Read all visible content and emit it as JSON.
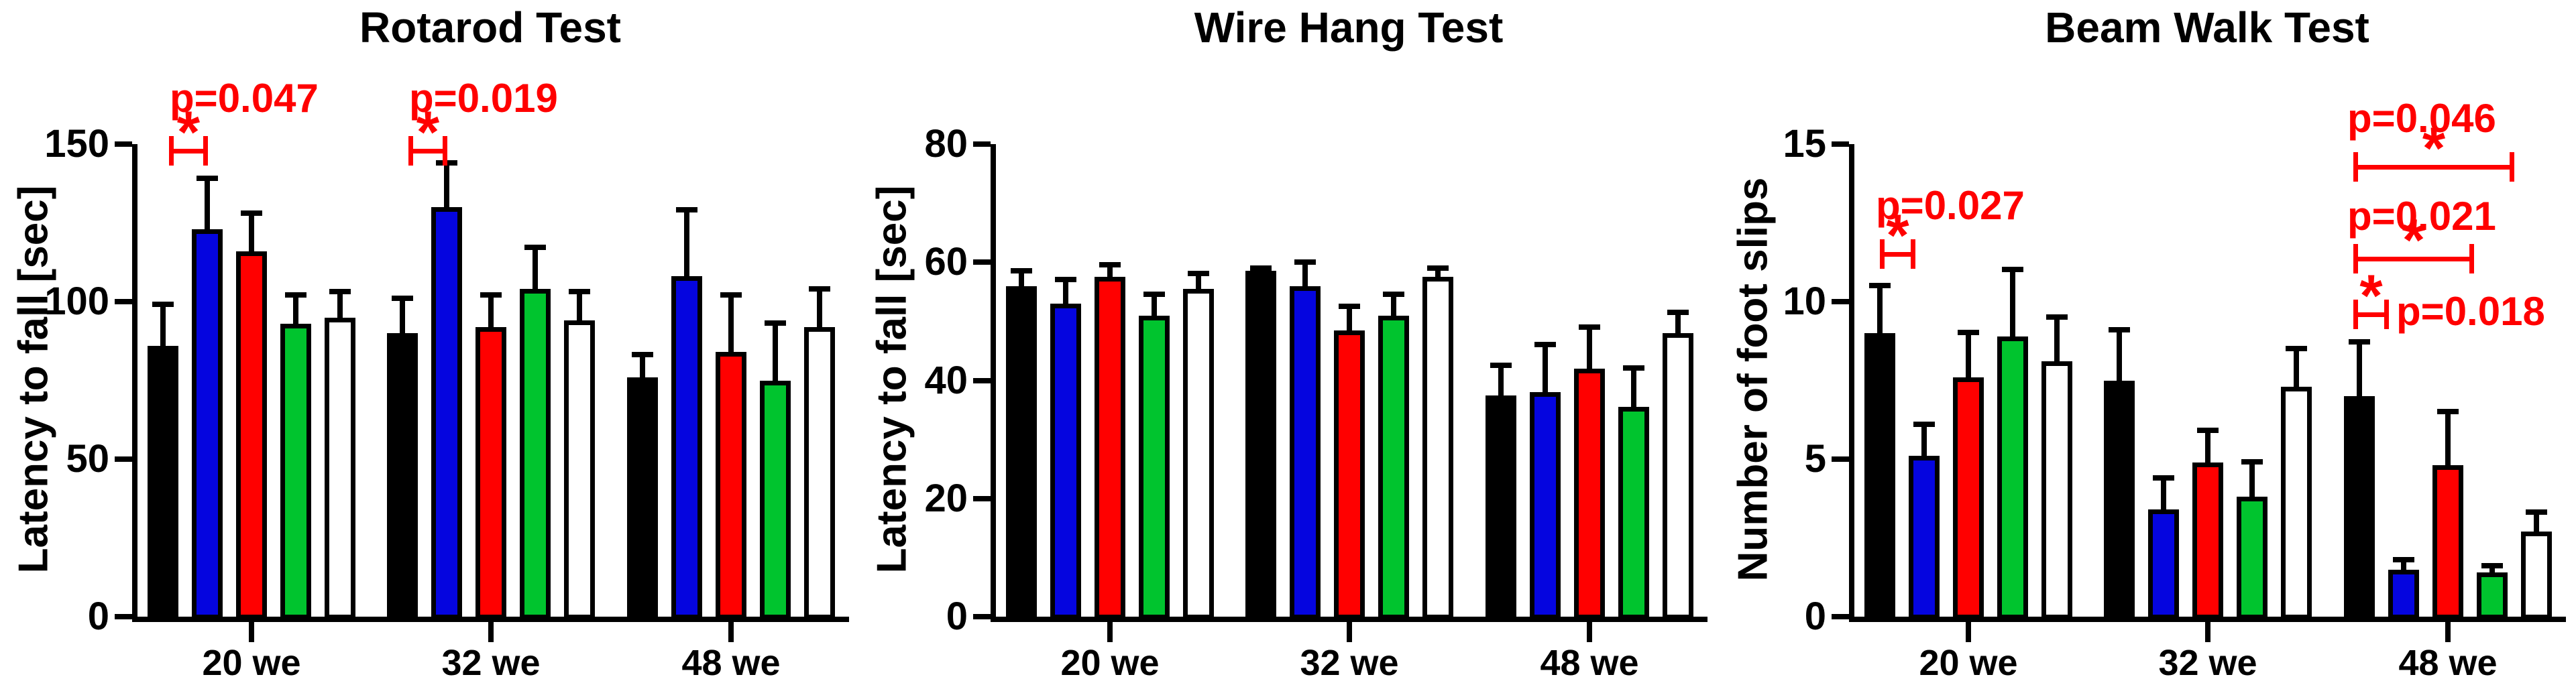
{
  "chart_data": [
    {
      "type": "bar",
      "title": "Rotarod Test",
      "ylabel": "Latency to fall [sec]",
      "ylim": [
        0,
        150
      ],
      "yticks": [
        0,
        50,
        100,
        150
      ],
      "categories": [
        "20 we",
        "32 we",
        "48 we"
      ],
      "grid": false,
      "legend": "none",
      "series": [
        {
          "name": "black",
          "color": "#000000",
          "values": [
            86,
            90,
            76
          ],
          "errors_up": [
            14,
            12,
            8
          ]
        },
        {
          "name": "blue",
          "color": "#0505DF",
          "values": [
            123,
            130,
            108
          ],
          "errors_up": [
            17,
            15,
            22
          ]
        },
        {
          "name": "red",
          "color": "#FF0000",
          "values": [
            116,
            92,
            84
          ],
          "errors_up": [
            13,
            11,
            19
          ]
        },
        {
          "name": "green",
          "color": "#00C42E",
          "values": [
            93,
            104,
            75
          ],
          "errors_up": [
            10,
            14,
            19
          ]
        },
        {
          "name": "white",
          "color": "#FFFFFF",
          "values": [
            95,
            94,
            92
          ],
          "errors_up": [
            9,
            10,
            13
          ]
        }
      ],
      "annotations": [
        {
          "label": "p=0.047",
          "at": "20 we",
          "compares": [
            "black",
            "blue"
          ],
          "asterisk": "*",
          "x1": 252,
          "x2": 310,
          "line_y": 225,
          "text_x": 253,
          "text_y": 116
        },
        {
          "label": "p=0.019",
          "at": "32 we",
          "compares": [
            "black",
            "blue"
          ],
          "asterisk": "*",
          "x1": 609,
          "x2": 667,
          "line_y": 225,
          "text_x": 610,
          "text_y": 116
        }
      ]
    },
    {
      "type": "bar",
      "title": "Wire Hang Test",
      "ylabel": "Latency to fall [sec]",
      "ylim": [
        0,
        80
      ],
      "yticks": [
        0,
        20,
        40,
        60,
        80
      ],
      "categories": [
        "20 we",
        "32 we",
        "48 we"
      ],
      "grid": false,
      "legend": "none",
      "series": [
        {
          "name": "black",
          "color": "#000000",
          "values": [
            56,
            58.5,
            37.5
          ],
          "errors_up": [
            3,
            1,
            5.5
          ]
        },
        {
          "name": "blue",
          "color": "#0505DF",
          "values": [
            53,
            56,
            38
          ],
          "errors_up": [
            4.5,
            4.5,
            8.5
          ]
        },
        {
          "name": "red",
          "color": "#FF0000",
          "values": [
            57.5,
            48.5,
            42
          ],
          "errors_up": [
            2.5,
            4.5,
            7.5
          ]
        },
        {
          "name": "green",
          "color": "#00C42E",
          "values": [
            51,
            51,
            35.5
          ],
          "errors_up": [
            4,
            4,
            7
          ]
        },
        {
          "name": "white",
          "color": "#FFFFFF",
          "values": [
            55.5,
            57.5,
            48
          ],
          "errors_up": [
            3,
            2,
            4
          ]
        }
      ],
      "annotations": []
    },
    {
      "type": "bar",
      "title": "Beam Walk Test",
      "ylabel": "Number of foot slips",
      "ylim": [
        0,
        15
      ],
      "yticks": [
        0,
        5,
        10,
        15
      ],
      "categories": [
        "20 we",
        "32 we",
        "48 we"
      ],
      "grid": false,
      "legend": "none",
      "series": [
        {
          "name": "black",
          "color": "#000000",
          "values": [
            9,
            7.5,
            7
          ],
          "errors_up": [
            1.6,
            1.7,
            1.8
          ]
        },
        {
          "name": "blue",
          "color": "#0505DF",
          "values": [
            5.1,
            3.4,
            1.5
          ],
          "errors_up": [
            1.1,
            1.1,
            0.4
          ]
        },
        {
          "name": "red",
          "color": "#FF0000",
          "values": [
            7.6,
            4.9,
            4.8
          ],
          "errors_up": [
            1.5,
            1.1,
            1.8
          ]
        },
        {
          "name": "green",
          "color": "#00C42E",
          "values": [
            8.9,
            3.8,
            1.4
          ],
          "errors_up": [
            2.2,
            1.2,
            0.3
          ]
        },
        {
          "name": "white",
          "color": "#FFFFFF",
          "values": [
            8.1,
            7.3,
            2.7
          ],
          "errors_up": [
            1.5,
            1.3,
            0.7
          ]
        }
      ],
      "annotations": [
        {
          "label": "p=0.027",
          "at": "20 we",
          "compares": [
            "black",
            "blue"
          ],
          "asterisk": "*",
          "x1": 243,
          "x2": 296,
          "line_y": 379,
          "text_x": 237,
          "text_y": 276
        },
        {
          "label": "p=0.046",
          "at": "48 we",
          "compares": [
            "black",
            "white"
          ],
          "asterisk": "*",
          "x1": 949,
          "x2": 1189,
          "line_y": 249,
          "text_x": 940,
          "text_y": 146
        },
        {
          "label": "p=0.021",
          "at": "48 we",
          "compares": [
            "black",
            "green"
          ],
          "asterisk": "*",
          "x1": 949,
          "x2": 1129,
          "line_y": 386,
          "text_x": 940,
          "text_y": 292
        },
        {
          "label": "p=0.018",
          "at": "48 we",
          "compares": [
            "black",
            "blue"
          ],
          "asterisk": "*",
          "x1": 949,
          "x2": 1002,
          "line_y": 469,
          "text_x": 1013,
          "text_y": 434
        }
      ]
    }
  ],
  "annotation_color": "#FF0000",
  "axis_color": "#000000"
}
